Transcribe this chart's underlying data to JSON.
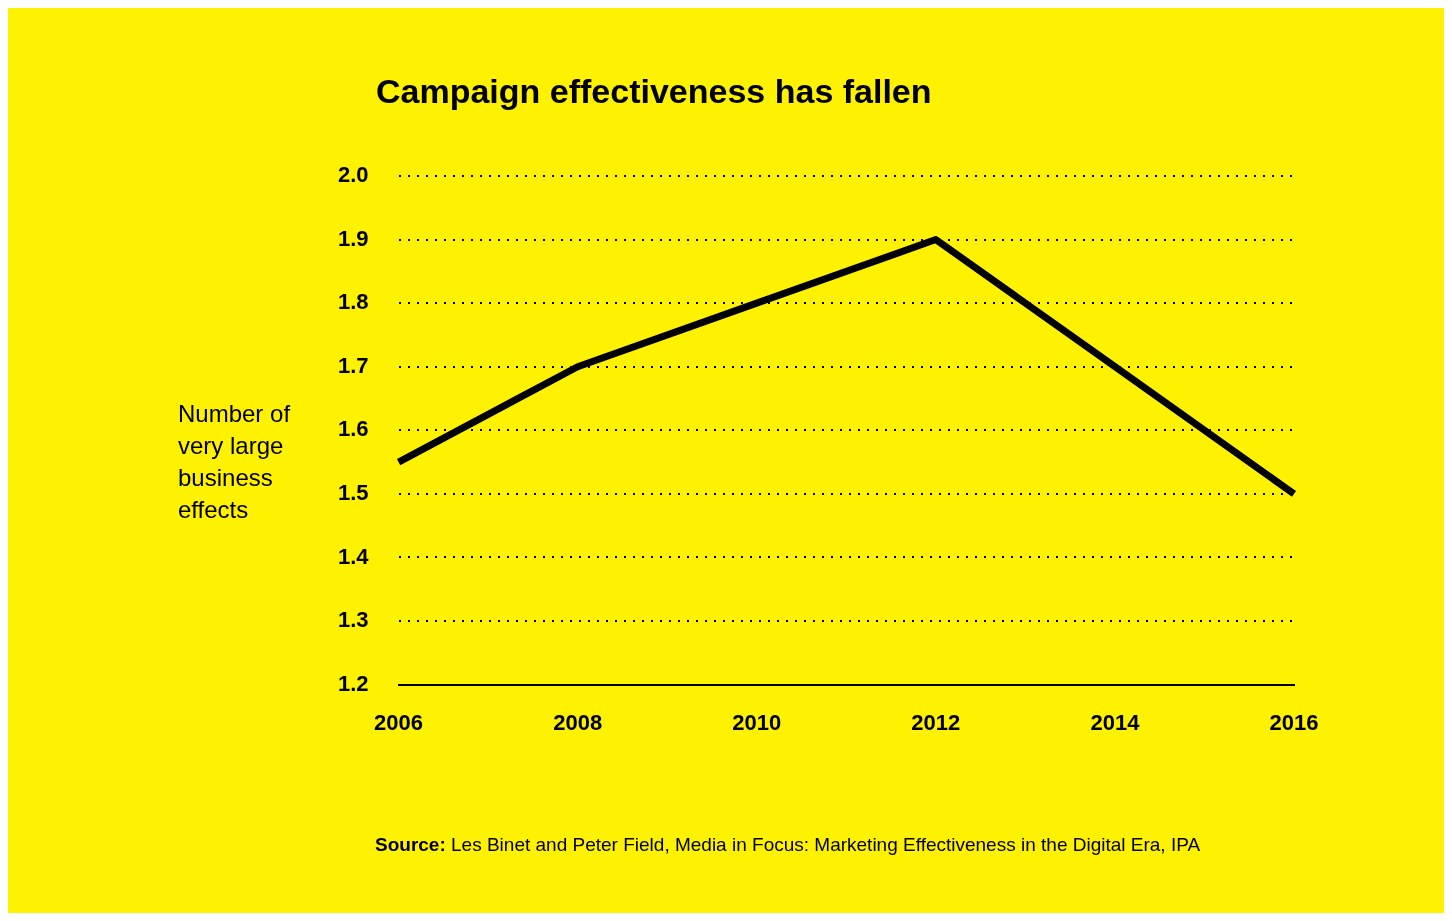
{
  "chart_data": {
    "type": "line",
    "title": "Campaign effectiveness has fallen",
    "ylabel": "Number of very large business effects",
    "categories": [
      "2006",
      "2008",
      "2010",
      "2012",
      "2014",
      "2016"
    ],
    "series": [
      {
        "color": "#000000",
        "values": [
          1.55,
          1.7,
          1.8,
          1.9,
          1.7,
          1.5
        ]
      }
    ],
    "ylim": [
      1.2,
      2.0
    ],
    "yticks": [
      1.2,
      1.3,
      1.4,
      1.5,
      1.6,
      1.7,
      1.8,
      1.9,
      {
        "value": 2,
        "label": "2.0"
      }
    ],
    "grid": "y",
    "legend": false,
    "marker": "none",
    "line_style": "solid",
    "annotations": [
      "Source: Les Binet and Peter Field, Media in Focus: Marketing Effectiveness in the Digital Era, IPA"
    ]
  }
}
